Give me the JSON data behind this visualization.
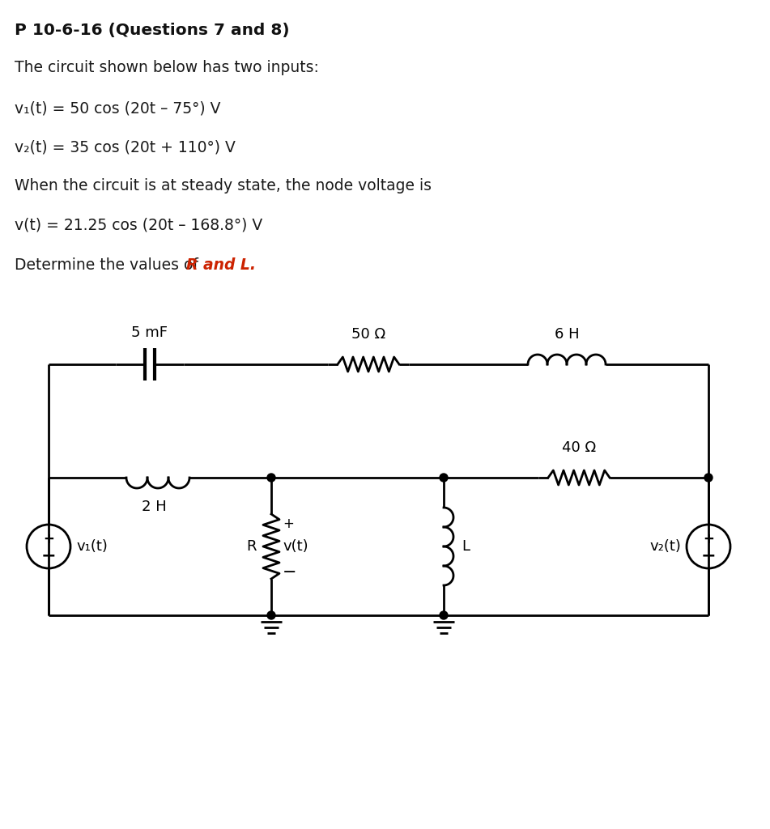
{
  "title": "P 10-6-16 (Questions 7 and 8)",
  "line1": "The circuit shown below has two inputs:",
  "line2": "v₁(t) = 50 cos (20t – 75°) V",
  "line3": "v₂(t) = 35 cos (20t + 110°) V",
  "line4": "When the circuit is at steady state, the node voltage is",
  "line5": "v(t) = 21.25 cos (20t – 168.8°) V",
  "line6_black": "Determine the values of ",
  "line6_red": "R and L.",
  "bg_color": "#ffffff",
  "text_color": "#1a1a1a",
  "red_color": "#cc2200",
  "cap_label": "5 mF",
  "res50_label": "50 Ω",
  "ind6_label": "6 H",
  "ind2_label": "2 H",
  "res40_label": "40 Ω",
  "R_label": "R",
  "L_label": "L",
  "v1_label": "v₁(t)",
  "v2_label": "v₂(t)",
  "vt_label": "v(t)"
}
